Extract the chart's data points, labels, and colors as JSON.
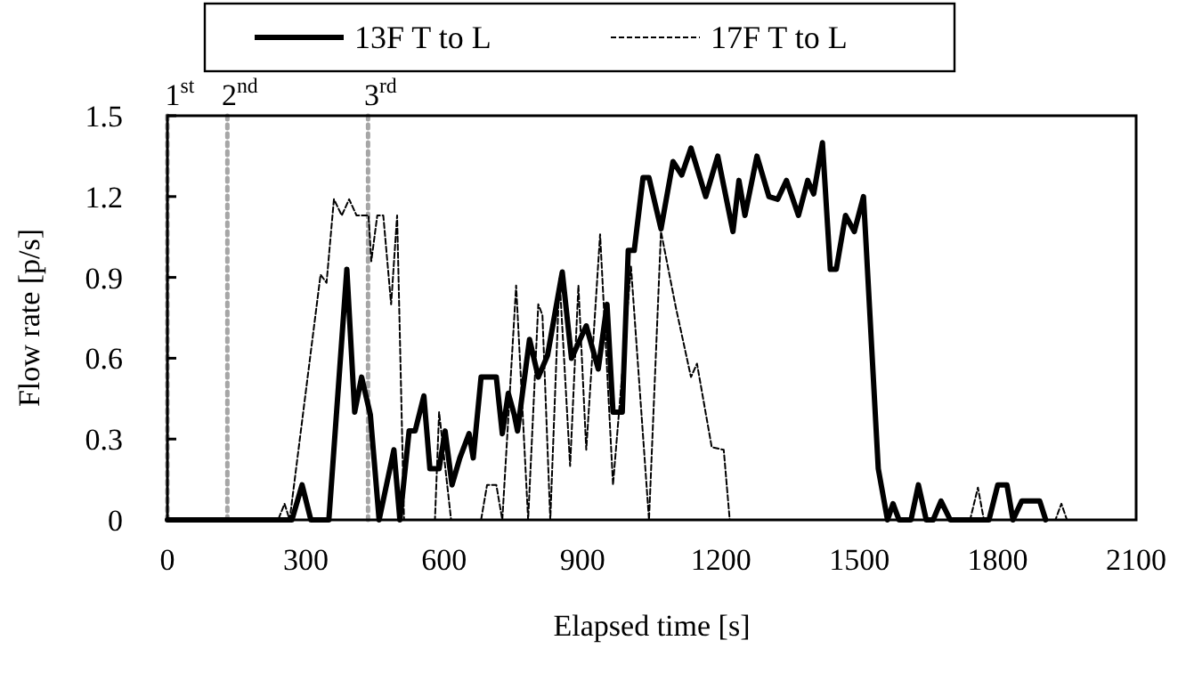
{
  "chart_data": {
    "type": "line",
    "xlabel": "Elapsed time [s]",
    "ylabel": "Flow rate [p/s]",
    "xlim": [
      0,
      2100
    ],
    "xticks": [
      0,
      300,
      600,
      900,
      1200,
      1500,
      1800,
      2100
    ],
    "ylim": [
      0,
      1.5
    ],
    "yticks": [
      0,
      0.3,
      0.6,
      0.9,
      1.2,
      1.5
    ],
    "legend": "top",
    "grid": false,
    "marker": "none",
    "ref_lines": [
      {
        "axis": "x",
        "value": 0,
        "label": "1$^{st}$",
        "color": "#a6a6a6",
        "line_style": "dotted"
      },
      {
        "axis": "x",
        "value": 130,
        "label": "2$^{nd}$",
        "color": "#a6a6a6",
        "line_style": "dotted"
      },
      {
        "axis": "x",
        "value": 435,
        "label": "3$^{rd}$",
        "color": "#a6a6a6",
        "line_style": "dotted"
      }
    ],
    "series": [
      {
        "name": "13F T to L",
        "color": "#000000",
        "line_style": "solid",
        "x": [
          0,
          270,
          292,
          311,
          350,
          389,
          406,
          421,
          440,
          459,
          491,
          504,
          524,
          537,
          556,
          569,
          589,
          602,
          617,
          634,
          654,
          663,
          680,
          713,
          726,
          739,
          752,
          759,
          785,
          804,
          824,
          856,
          876,
          908,
          934,
          953,
          966,
          986,
          999,
          1012,
          1031,
          1044,
          1070,
          1096,
          1115,
          1135,
          1167,
          1193,
          1226,
          1239,
          1252,
          1278,
          1304,
          1323,
          1342,
          1368,
          1388,
          1401,
          1420,
          1437,
          1450,
          1470,
          1489,
          1509,
          1541,
          1561,
          1573,
          1586,
          1612,
          1628,
          1645,
          1660,
          1677,
          1697,
          1781,
          1800,
          1820,
          1833,
          1852,
          1891,
          1904
        ],
        "values": [
          0,
          0,
          0.13,
          0,
          0,
          0.93,
          0.4,
          0.53,
          0.39,
          0,
          0.26,
          0,
          0.33,
          0.33,
          0.46,
          0.19,
          0.19,
          0.33,
          0.13,
          0.23,
          0.32,
          0.23,
          0.53,
          0.53,
          0.32,
          0.47,
          0.39,
          0.33,
          0.67,
          0.53,
          0.61,
          0.92,
          0.6,
          0.72,
          0.56,
          0.8,
          0.4,
          0.4,
          1.0,
          1.0,
          1.27,
          1.27,
          1.08,
          1.33,
          1.28,
          1.38,
          1.2,
          1.35,
          1.07,
          1.26,
          1.13,
          1.35,
          1.2,
          1.19,
          1.26,
          1.13,
          1.26,
          1.21,
          1.4,
          0.93,
          0.93,
          1.13,
          1.07,
          1.2,
          0.19,
          0,
          0.06,
          0,
          0,
          0.13,
          0,
          0,
          0.07,
          0,
          0,
          0.13,
          0.13,
          0,
          0.07,
          0.07,
          0
        ]
      },
      {
        "name": "17F T to L",
        "color": "#000000",
        "line_style": "dashed",
        "x": [
          0,
          240,
          254,
          265,
          332,
          345,
          361,
          378,
          394,
          410,
          436,
          442,
          455,
          468,
          485,
          498,
          513,
          580,
          589,
          615,
          680,
          693,
          713,
          726,
          756,
          782,
          804,
          813,
          830,
          850,
          873,
          891,
          908,
          938,
          966,
          1005,
          1044,
          1070,
          1102,
          1135,
          1148,
          1180,
          1206,
          1219,
          1740,
          1757,
          1770,
          1925,
          1938,
          1950
        ],
        "values": [
          0,
          0,
          0.06,
          0,
          0.91,
          0.88,
          1.19,
          1.13,
          1.19,
          1.13,
          1.13,
          0.96,
          1.13,
          1.13,
          0.8,
          1.13,
          0,
          0,
          0.4,
          0,
          0,
          0.13,
          0.13,
          0,
          0.87,
          0,
          0.8,
          0.76,
          0,
          0.9,
          0.2,
          0.87,
          0.26,
          1.06,
          0.13,
          0.94,
          0,
          1.07,
          0.79,
          0.53,
          0.58,
          0.27,
          0.26,
          0,
          0,
          0.12,
          0,
          0,
          0.06,
          0
        ]
      }
    ]
  }
}
